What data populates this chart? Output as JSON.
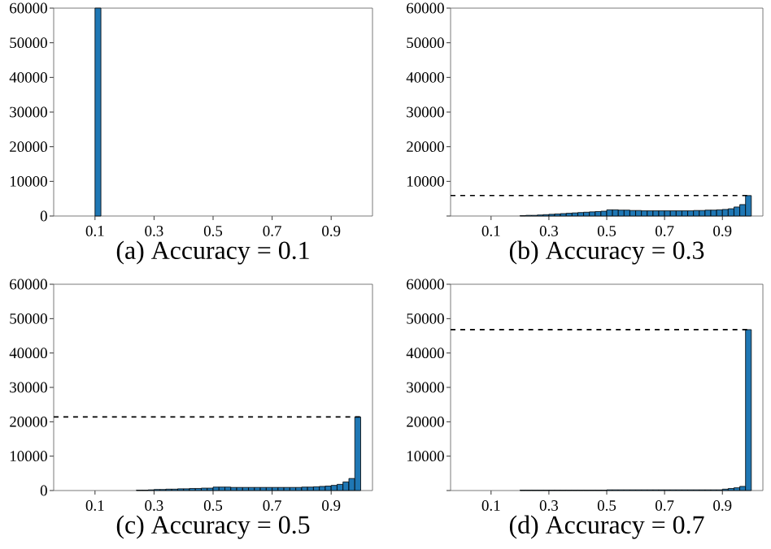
{
  "chart_data": [
    {
      "type": "histogram",
      "xlabel": "(a) Accuracy = 0.1",
      "color": "#1f77b4",
      "bins": [
        0,
        0.02,
        0.04,
        0.06,
        0.08,
        0.1,
        0.12,
        0.14,
        0.16,
        0.18,
        0.2,
        0.22,
        0.24,
        0.26,
        0.28,
        0.3,
        0.32,
        0.34,
        0.36,
        0.38,
        0.4,
        0.42,
        0.44,
        0.46,
        0.48,
        0.5,
        0.52,
        0.54,
        0.56,
        0.58,
        0.6,
        0.62,
        0.64,
        0.66,
        0.68,
        0.7,
        0.72,
        0.74,
        0.76,
        0.78,
        0.8,
        0.82,
        0.84,
        0.86,
        0.88,
        0.9,
        0.92,
        0.94,
        0.96,
        0.98,
        1.0
      ],
      "values": [
        0,
        0,
        0,
        0,
        0,
        60000,
        0,
        0,
        0,
        0,
        0,
        0,
        0,
        0,
        0,
        0,
        0,
        0,
        0,
        0,
        0,
        0,
        0,
        0,
        0,
        0,
        0,
        0,
        0,
        0,
        0,
        0,
        0,
        0,
        0,
        0,
        0,
        0,
        0,
        0,
        0,
        0,
        0,
        0,
        0,
        0,
        0,
        0,
        0,
        0
      ],
      "xlim": [
        -0.04,
        1.04
      ],
      "xticks": [
        0.1,
        0.3,
        0.5,
        0.7,
        0.9
      ],
      "ylim": [
        0,
        60000
      ],
      "yticks": [
        0,
        10000,
        20000,
        30000,
        40000,
        50000,
        60000
      ]
    },
    {
      "type": "histogram",
      "xlabel": "(b) Accuracy = 0.3",
      "color": "#1f77b4",
      "bins": [
        0,
        0.02,
        0.04,
        0.06,
        0.08,
        0.1,
        0.12,
        0.14,
        0.16,
        0.18,
        0.2,
        0.22,
        0.24,
        0.26,
        0.28,
        0.3,
        0.32,
        0.34,
        0.36,
        0.38,
        0.4,
        0.42,
        0.44,
        0.46,
        0.48,
        0.5,
        0.52,
        0.54,
        0.56,
        0.58,
        0.6,
        0.62,
        0.64,
        0.66,
        0.68,
        0.7,
        0.72,
        0.74,
        0.76,
        0.78,
        0.8,
        0.82,
        0.84,
        0.86,
        0.88,
        0.9,
        0.92,
        0.94,
        0.96,
        0.98,
        1.0
      ],
      "values": [
        0,
        0,
        0,
        0,
        0,
        0,
        0,
        0,
        0,
        0,
        100,
        200,
        200,
        300,
        400,
        500,
        600,
        700,
        800,
        900,
        1000,
        1100,
        1200,
        1300,
        1400,
        1800,
        1800,
        1700,
        1700,
        1600,
        1600,
        1500,
        1500,
        1500,
        1500,
        1500,
        1500,
        1500,
        1500,
        1500,
        1600,
        1600,
        1700,
        1700,
        1800,
        1900,
        2100,
        2600,
        3300,
        5900
      ],
      "xlim": [
        -0.04,
        1.04
      ],
      "xticks": [
        0.1,
        0.3,
        0.5,
        0.7,
        0.9
      ],
      "ylim": [
        0,
        60000
      ],
      "yticks": [
        {
          "value": 0,
          "label": null
        },
        10000,
        20000,
        30000,
        40000,
        50000,
        60000
      ],
      "ref_lines": [
        {
          "axis": "y",
          "value": 5900,
          "line_style": "dashed",
          "color": "#000000"
        }
      ]
    },
    {
      "type": "histogram",
      "xlabel": "(c) Accuracy = 0.5",
      "color": "#1f77b4",
      "bins": [
        0,
        0.02,
        0.04,
        0.06,
        0.08,
        0.1,
        0.12,
        0.14,
        0.16,
        0.18,
        0.2,
        0.22,
        0.24,
        0.26,
        0.28,
        0.3,
        0.32,
        0.34,
        0.36,
        0.38,
        0.4,
        0.42,
        0.44,
        0.46,
        0.48,
        0.5,
        0.52,
        0.54,
        0.56,
        0.58,
        0.6,
        0.62,
        0.64,
        0.66,
        0.68,
        0.7,
        0.72,
        0.74,
        0.76,
        0.78,
        0.8,
        0.82,
        0.84,
        0.86,
        0.88,
        0.9,
        0.92,
        0.94,
        0.96,
        0.98,
        1.0
      ],
      "values": [
        0,
        0,
        0,
        0,
        0,
        0,
        0,
        0,
        0,
        0,
        0,
        0,
        100,
        100,
        200,
        300,
        300,
        400,
        400,
        500,
        500,
        600,
        600,
        700,
        700,
        1000,
        1000,
        1000,
        900,
        900,
        900,
        900,
        900,
        900,
        900,
        900,
        900,
        900,
        900,
        900,
        1000,
        1000,
        1100,
        1200,
        1300,
        1500,
        1800,
        2500,
        3500,
        21400
      ],
      "xlim": [
        -0.04,
        1.04
      ],
      "xticks": [
        0.1,
        0.3,
        0.5,
        0.7,
        0.9
      ],
      "ylim": [
        0,
        60000
      ],
      "yticks": [
        0,
        10000,
        20000,
        30000,
        40000,
        50000,
        60000
      ],
      "ref_lines": [
        {
          "axis": "y",
          "value": 21400,
          "line_style": "dashed",
          "color": "#000000"
        }
      ]
    },
    {
      "type": "histogram",
      "xlabel": "(d) Accuracy = 0.7",
      "color": "#1f77b4",
      "bins": [
        0,
        0.02,
        0.04,
        0.06,
        0.08,
        0.1,
        0.12,
        0.14,
        0.16,
        0.18,
        0.2,
        0.22,
        0.24,
        0.26,
        0.28,
        0.3,
        0.32,
        0.34,
        0.36,
        0.38,
        0.4,
        0.42,
        0.44,
        0.46,
        0.48,
        0.5,
        0.52,
        0.54,
        0.56,
        0.58,
        0.6,
        0.62,
        0.64,
        0.66,
        0.68,
        0.7,
        0.72,
        0.74,
        0.76,
        0.78,
        0.8,
        0.82,
        0.84,
        0.86,
        0.88,
        0.9,
        0.92,
        0.94,
        0.96,
        0.98,
        1.0
      ],
      "values": [
        0,
        0,
        0,
        0,
        0,
        0,
        0,
        0,
        0,
        0,
        100,
        100,
        100,
        100,
        100,
        100,
        100,
        100,
        100,
        100,
        100,
        100,
        100,
        100,
        100,
        200,
        200,
        200,
        200,
        200,
        200,
        200,
        200,
        200,
        200,
        200,
        200,
        200,
        200,
        200,
        200,
        200,
        200,
        200,
        200,
        400,
        600,
        800,
        1200,
        46800
      ],
      "xlim": [
        -0.04,
        1.04
      ],
      "xticks": [
        0.1,
        0.3,
        0.5,
        0.7,
        0.9
      ],
      "ylim": [
        0,
        60000
      ],
      "yticks": [
        {
          "value": 0,
          "label": null
        },
        10000,
        20000,
        30000,
        40000,
        50000,
        60000
      ],
      "ref_lines": [
        {
          "axis": "y",
          "value": 46800,
          "line_style": "dashed",
          "color": "#000000"
        }
      ]
    }
  ]
}
